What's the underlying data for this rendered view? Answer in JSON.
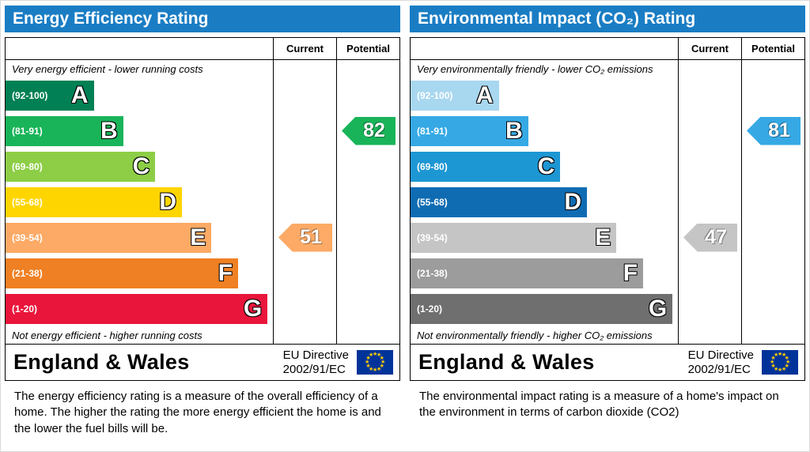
{
  "colors": {
    "header_bg": "#1a7dc4",
    "flag_bg": "#003399",
    "flag_star": "#ffcc00"
  },
  "icons": {
    "footer_flag": "eu-flag-icon"
  },
  "panels": [
    {
      "title": "Energy Efficiency Rating",
      "columns": {
        "current": "Current",
        "potential": "Potential"
      },
      "top_note": "Very energy efficient - lower running costs",
      "bottom_note": "Not energy efficient - higher running costs",
      "bands": [
        {
          "label": "A",
          "range": "(92-100)",
          "color": "#008054",
          "width_pct": 33
        },
        {
          "label": "B",
          "range": "(81-91)",
          "color": "#19b459",
          "width_pct": 44
        },
        {
          "label": "C",
          "range": "(69-80)",
          "color": "#8dce46",
          "width_pct": 56
        },
        {
          "label": "D",
          "range": "(55-68)",
          "color": "#ffd500",
          "width_pct": 66
        },
        {
          "label": "E",
          "range": "(39-54)",
          "color": "#fcaa65",
          "width_pct": 77
        },
        {
          "label": "F",
          "range": "(21-38)",
          "color": "#ef8023",
          "width_pct": 87
        },
        {
          "label": "G",
          "range": "(1-20)",
          "color": "#e9153b",
          "width_pct": 98
        }
      ],
      "current": {
        "value": 51,
        "band": "E",
        "color": "#fcaa65"
      },
      "potential": {
        "value": 82,
        "band": "B",
        "color": "#19b459"
      },
      "footer": {
        "region": "England & Wales",
        "directive_line1": "EU Directive",
        "directive_line2": "2002/91/EC"
      },
      "caption": "The energy efficiency rating is a measure of the overall efficiency of a home.  The higher the rating the more energy efficient the home is and the lower the fuel bills will be."
    },
    {
      "title": "Environmental Impact (CO₂) Rating",
      "columns": {
        "current": "Current",
        "potential": "Potential"
      },
      "top_note": "Very environmentally friendly - lower CO₂ emissions",
      "bottom_note": "Not environmentally friendly - higher CO₂ emissions",
      "bands": [
        {
          "label": "A",
          "range": "(92-100)",
          "color": "#a8d7f0",
          "width_pct": 33
        },
        {
          "label": "B",
          "range": "(81-91)",
          "color": "#36a9e5",
          "width_pct": 44
        },
        {
          "label": "C",
          "range": "(69-80)",
          "color": "#1d97d4",
          "width_pct": 56
        },
        {
          "label": "D",
          "range": "(55-68)",
          "color": "#0f6cb2",
          "width_pct": 66
        },
        {
          "label": "E",
          "range": "(39-54)",
          "color": "#c5c5c5",
          "width_pct": 77
        },
        {
          "label": "F",
          "range": "(21-38)",
          "color": "#9c9c9c",
          "width_pct": 87
        },
        {
          "label": "G",
          "range": "(1-20)",
          "color": "#6f6f6f",
          "width_pct": 98
        }
      ],
      "current": {
        "value": 47,
        "band": "E",
        "color": "#c5c5c5"
      },
      "potential": {
        "value": 81,
        "band": "B",
        "color": "#36a9e5"
      },
      "footer": {
        "region": "England & Wales",
        "directive_line1": "EU Directive",
        "directive_line2": "2002/91/EC"
      },
      "caption": "The environmental impact rating is a measure of a home's impact on the environment in terms of carbon dioxide (CO2)"
    }
  ],
  "chart_data": [
    {
      "type": "bar",
      "title": "Energy Efficiency Rating",
      "categories": [
        "A (92-100)",
        "B (81-91)",
        "C (69-80)",
        "D (55-68)",
        "E (39-54)",
        "F (21-38)",
        "G (1-20)"
      ],
      "series": [
        {
          "name": "Current",
          "values": [
            51
          ],
          "band": "E"
        },
        {
          "name": "Potential",
          "values": [
            82
          ],
          "band": "B"
        }
      ],
      "annotations": [
        "Very energy efficient - lower running costs",
        "Not energy efficient - higher running costs",
        "England & Wales",
        "EU Directive 2002/91/EC"
      ],
      "xlim": [
        1,
        100
      ]
    },
    {
      "type": "bar",
      "title": "Environmental Impact (CO₂) Rating",
      "categories": [
        "A (92-100)",
        "B (81-91)",
        "C (69-80)",
        "D (55-68)",
        "E (39-54)",
        "F (21-38)",
        "G (1-20)"
      ],
      "series": [
        {
          "name": "Current",
          "values": [
            47
          ],
          "band": "E"
        },
        {
          "name": "Potential",
          "values": [
            81
          ],
          "band": "B"
        }
      ],
      "annotations": [
        "Very environmentally friendly - lower CO₂ emissions",
        "Not environmentally friendly - higher CO₂ emissions",
        "England & Wales",
        "EU Directive 2002/91/EC"
      ],
      "xlim": [
        1,
        100
      ]
    }
  ]
}
